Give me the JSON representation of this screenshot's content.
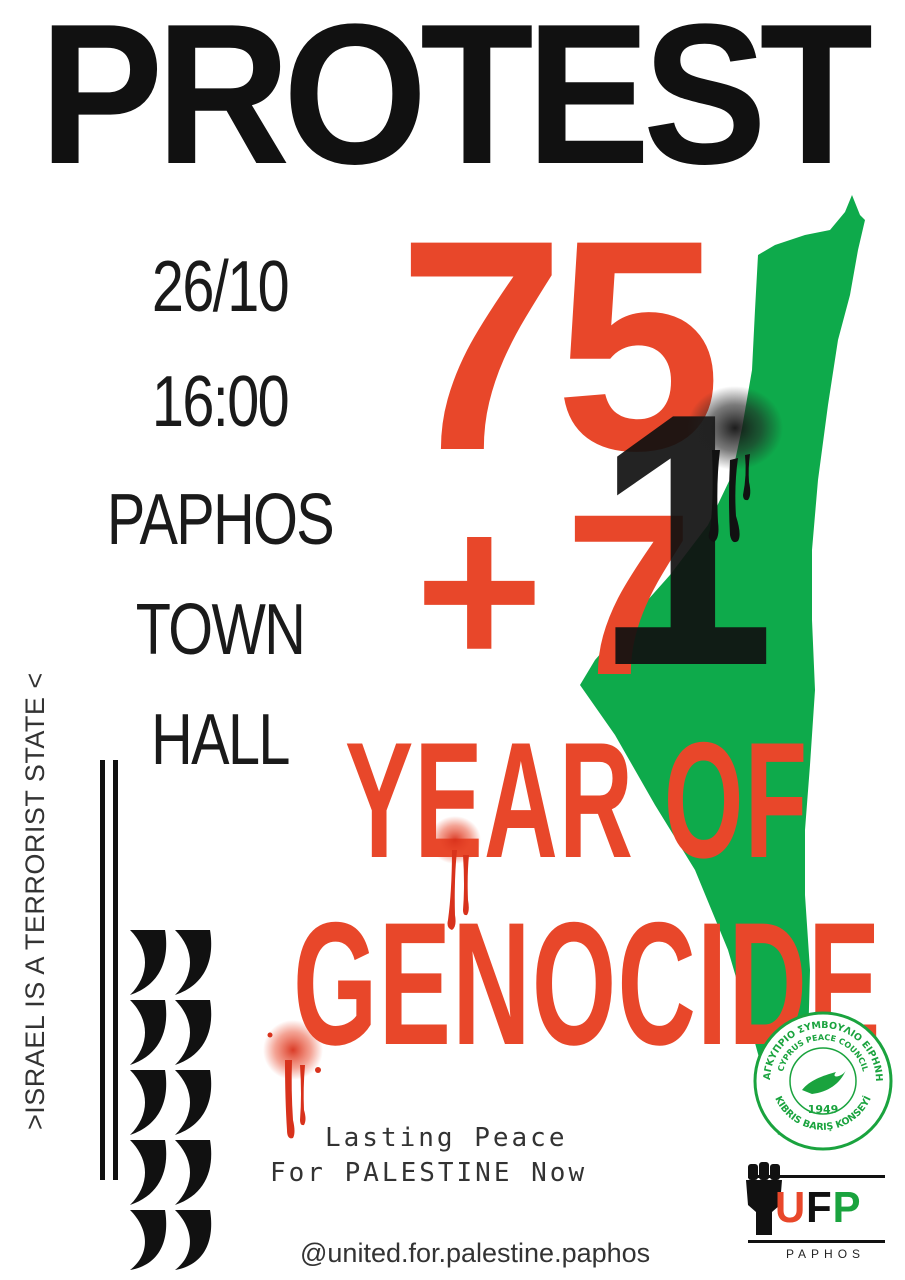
{
  "poster": {
    "title": "PROTEST",
    "date": "26/10",
    "time": "16:00",
    "venue_line1": "PAPHOS TOWN",
    "venue_line2": "HALL",
    "number_75": "75",
    "plus": "+",
    "seven": "7",
    "one": "1",
    "headline_line1": "YEAR OF",
    "headline_line2": "GENOCIDE",
    "vertical_slogan": ">ISRAEL IS A TERRORIST STATE <",
    "slogan_line1": "Lasting Peace",
    "slogan_line2": "For PALESTINE Now",
    "social_handle": "@united.for.palestine.paphos"
  },
  "seal": {
    "text_top": "ΠΑΓΚΥΠΡΙΟ ΣΥΜΒΟΥΛΙΟ ΕΙΡΗΝΗΣ",
    "text_middle": "CYPRUS PEACE COUNCIL",
    "text_bottom": "KIBRIS BARIŞ KONSEYİ",
    "year": "1949"
  },
  "logo": {
    "u": "U",
    "f": "F",
    "p": "P",
    "subtitle": "PAPHOS",
    "icon": "raised-fist-icon"
  },
  "colors": {
    "red": "#e8472a",
    "green": "#0eaa4b",
    "black": "#111111",
    "background": "#ffffff"
  }
}
